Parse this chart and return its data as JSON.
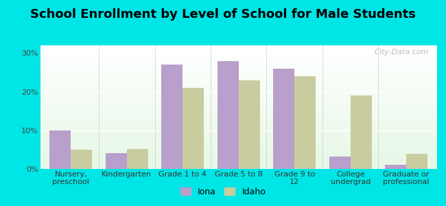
{
  "title": "School Enrollment by Level of School for Male Students",
  "categories": [
    "Nursery,\npreschool",
    "Kindergarten",
    "Grade 1 to 4",
    "Grade 5 to 8",
    "Grade 9 to\n12",
    "College\nundergrad",
    "Graduate or\nprofessional"
  ],
  "iona_values": [
    9.9,
    4.1,
    27.0,
    28.0,
    26.0,
    3.2,
    1.1
  ],
  "idaho_values": [
    5.0,
    5.2,
    21.0,
    23.0,
    24.0,
    19.0,
    4.0
  ],
  "iona_color": "#b89fcc",
  "idaho_color": "#c8cc9f",
  "bar_width": 0.38,
  "ylim": [
    0,
    32
  ],
  "yticks": [
    0,
    10,
    20,
    30
  ],
  "ytick_labels": [
    "0%",
    "10%",
    "20%",
    "30%"
  ],
  "legend_labels": [
    "Iona",
    "Idaho"
  ],
  "background_color": "#00e5e5",
  "title_fontsize": 13,
  "tick_fontsize": 8,
  "legend_fontsize": 9,
  "watermark": "City-Data.com"
}
